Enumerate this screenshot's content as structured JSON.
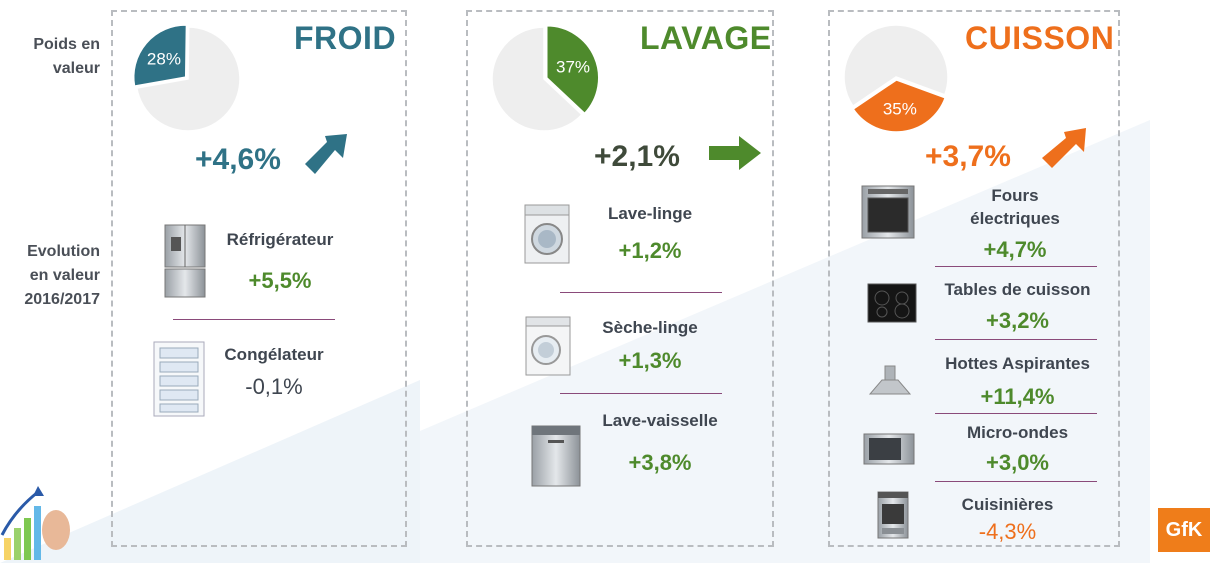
{
  "side_labels": {
    "weight": "Poids en\nvaleur",
    "evolution": "Evolution\nen valeur\n2016/2017"
  },
  "colors": {
    "froid": "#2f7286",
    "lavage": "#4e8a2c",
    "cuisson": "#ee6f1c",
    "pie_rest": "#eeeeee",
    "positive": "#4e8a2c",
    "negative": "#ee6f1c",
    "separator": "#8a4a7a"
  },
  "chart_data": [
    {
      "type": "pie",
      "title": "FROID",
      "slices": [
        {
          "label": "28%",
          "value": 28
        },
        {
          "label": "",
          "value": 72
        }
      ],
      "evolution": "+4,6%",
      "products": [
        {
          "name": "Réfrigérateur",
          "value": "+5,5%"
        },
        {
          "name": "Congélateur",
          "value": "-0,1%"
        }
      ]
    },
    {
      "type": "pie",
      "title": "LAVAGE",
      "slices": [
        {
          "label": "37%",
          "value": 37
        },
        {
          "label": "",
          "value": 63
        }
      ],
      "evolution": "+2,1%",
      "products": [
        {
          "name": "Lave-linge",
          "value": "+1,2%"
        },
        {
          "name": "Sèche-linge",
          "value": "+1,3%"
        },
        {
          "name": "Lave-vaisselle",
          "value": "+3,8%"
        }
      ]
    },
    {
      "type": "pie",
      "title": "CUISSON",
      "slices": [
        {
          "label": "35%",
          "value": 35
        },
        {
          "label": "",
          "value": 65
        }
      ],
      "evolution": "+3,7%",
      "products": [
        {
          "name": "Fours\nélectriques",
          "value": "+4,7%"
        },
        {
          "name": "Tables de cuisson",
          "value": "+3,2%"
        },
        {
          "name": "Hottes Aspirantes",
          "value": "+11,4%"
        },
        {
          "name": "Micro-ondes",
          "value": "+3,0%"
        },
        {
          "name": "Cuisinières",
          "value": "-4,3%"
        }
      ]
    }
  ],
  "logo": {
    "text": "GfK"
  }
}
